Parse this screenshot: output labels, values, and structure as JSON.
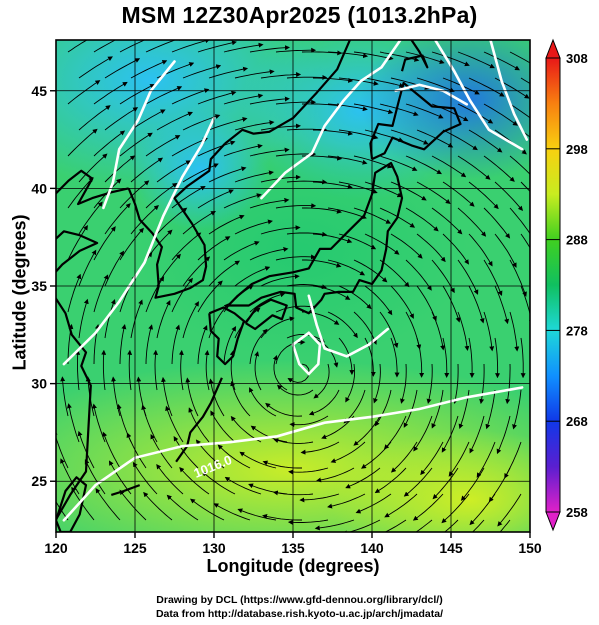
{
  "title": "MSM 12Z30Apr2025 (1013.2hPa)",
  "axes": {
    "xlabel": "Longitude (degrees)",
    "ylabel": "Latitude  (degrees)",
    "x_ticks": [
      "120",
      "125",
      "130",
      "135",
      "140",
      "145",
      "150"
    ],
    "y_ticks": [
      "25",
      "30",
      "35",
      "40",
      "45"
    ],
    "xlim": [
      120,
      150
    ],
    "ylim": [
      22.4,
      47.6
    ]
  },
  "colorbar": {
    "ticks": [
      "258",
      "268",
      "278",
      "288",
      "298",
      "308"
    ],
    "range": [
      258,
      308
    ]
  },
  "contour_labels": [
    "1016.0"
  ],
  "credits": [
    "Drawing by DCL (https://www.gfd-dennou.org/library/dcl/)",
    "Data from http://database.rish.kyoto-u.ac.jp/arch/jmadata/"
  ],
  "colors": {
    "contour": "#ffffff",
    "coastline": "#000000",
    "streamline": "#000000"
  }
}
